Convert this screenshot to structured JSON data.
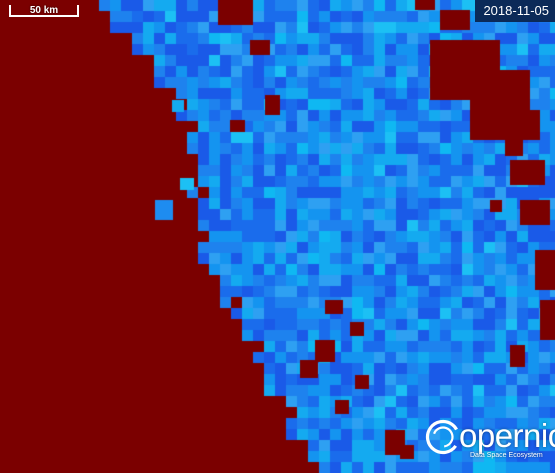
{
  "map": {
    "date": "2018-11-05",
    "scale_label": "50 km",
    "logo": {
      "name": "Copernicus",
      "tagline": "Data Space Ecosystem"
    },
    "colors": {
      "land": "#7b0000",
      "water_light": "#14b4f0",
      "water_mid": "#1e8cf0",
      "water_dark": "#1450e6",
      "badge_background": "#0b2a58"
    }
  }
}
